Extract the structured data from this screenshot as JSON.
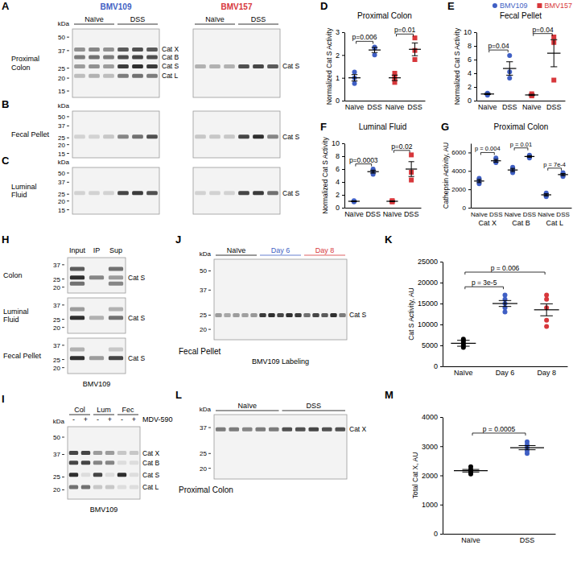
{
  "chart_data": [
    {
      "type": "scatter",
      "panel": "D",
      "title": "Proximal Colon",
      "y_label": "Normalized Cat S Activity",
      "categories": [
        "Naïve",
        "DSS",
        "Naïve",
        "DSS"
      ],
      "ylim": [
        0,
        3
      ],
      "yticks": [
        0,
        1,
        2,
        3
      ],
      "series": [
        {
          "color": "#3f5fc4",
          "marker": "circle",
          "x": [
            0,
            0,
            0,
            1,
            1,
            1
          ],
          "values": [
            1.25,
            0.75,
            1.0,
            2.0,
            2.3,
            2.35
          ],
          "mean_x": [
            0,
            1
          ],
          "mean": [
            1.0,
            2.22
          ],
          "error": [
            0.14,
            0.11
          ]
        },
        {
          "color": "#d7373b",
          "marker": "square",
          "x": [
            2,
            2,
            2,
            3,
            3,
            3
          ],
          "values": [
            0.8,
            1.0,
            1.2,
            1.8,
            2.2,
            2.75
          ],
          "mean_x": [
            2,
            3
          ],
          "mean": [
            1.0,
            2.25
          ],
          "error": [
            0.12,
            0.28
          ]
        }
      ],
      "annotations": [
        {
          "text": "p=0.006",
          "from": 0,
          "to": 1,
          "y": 2.6
        },
        {
          "text": "p=0.01",
          "from": 2,
          "to": 3,
          "y": 2.92
        }
      ]
    },
    {
      "type": "scatter",
      "panel": "E",
      "title": "Fecal Pellet",
      "y_label": "Normalized Cat S Activity",
      "categories": [
        "Naïve",
        "DSS",
        "Naïve",
        "DSS"
      ],
      "ylim": [
        0,
        10
      ],
      "yticks": [
        0,
        2,
        4,
        6,
        8,
        10
      ],
      "legend": "top-right",
      "series": [
        {
          "name": "BMV109",
          "color": "#3f5fc4",
          "marker": "circle",
          "x": [
            0,
            0,
            0,
            1,
            1,
            1
          ],
          "values": [
            0.8,
            1.0,
            1.1,
            3.3,
            4.2,
            6.6
          ],
          "mean_x": [
            0,
            1
          ],
          "mean": [
            0.97,
            4.7
          ],
          "error": [
            0.09,
            0.98
          ]
        },
        {
          "name": "BMV157",
          "color": "#d7373b",
          "marker": "square",
          "x": [
            2,
            2,
            2,
            3,
            3,
            3
          ],
          "values": [
            0.7,
            0.8,
            1.0,
            9.3,
            8.5,
            3.0
          ],
          "mean_x": [
            2,
            3
          ],
          "mean": [
            0.83,
            6.93
          ],
          "error": [
            0.09,
            1.98
          ]
        }
      ],
      "annotations": [
        {
          "text": "p=0.04",
          "from": 0,
          "to": 1,
          "y": 7.4
        },
        {
          "text": "p=0.04",
          "from": 2,
          "to": 3,
          "y": 9.8
        }
      ]
    },
    {
      "type": "scatter",
      "panel": "F",
      "title": "Luminal Fluid",
      "y_label": "Normalized Cat S Activity",
      "categories": [
        "Naïve",
        "DSS",
        "Naïve",
        "DSS"
      ],
      "ylim": [
        0,
        10
      ],
      "yticks": [
        0,
        2,
        4,
        6,
        8,
        10
      ],
      "series": [
        {
          "color": "#3f5fc4",
          "marker": "circle",
          "x": [
            0,
            0,
            0,
            1,
            1,
            1
          ],
          "values": [
            0.9,
            1.0,
            1.1,
            5.2,
            5.6,
            6.0
          ],
          "mean_x": [
            0,
            1
          ],
          "mean": [
            1.0,
            5.6
          ],
          "error": [
            0.06,
            0.23
          ]
        },
        {
          "color": "#d7373b",
          "marker": "square",
          "x": [
            2,
            2,
            2,
            3,
            3,
            3
          ],
          "values": [
            0.9,
            1.0,
            1.1,
            4.3,
            5.5,
            8.2
          ],
          "mean_x": [
            2,
            3
          ],
          "mean": [
            1.0,
            6.0
          ],
          "error": [
            0.06,
            1.15
          ]
        }
      ],
      "annotations": [
        {
          "text": "p=0.0003",
          "from": 0,
          "to": 1,
          "y": 6.8
        },
        {
          "text": "p=0.02",
          "from": 2,
          "to": 3,
          "y": 8.9
        }
      ]
    },
    {
      "type": "scatter",
      "panel": "G",
      "title": "Proximal Colon",
      "y_label": "Cathepsin Activity, AU",
      "categories": [
        "Naïve",
        "DSS",
        "Naïve",
        "DSS",
        "Naïve",
        "DSS"
      ],
      "ylim": [
        0,
        7000
      ],
      "yticks": [
        0,
        2000,
        4000,
        6000
      ],
      "series": [
        {
          "color": "#3f5fc4",
          "marker": "circle",
          "x": [
            0,
            0,
            0,
            1,
            1,
            1,
            2,
            2,
            2,
            3,
            3,
            3,
            4,
            4,
            4,
            5,
            5,
            5
          ],
          "values": [
            2600,
            2900,
            3200,
            4900,
            5000,
            5400,
            3800,
            4100,
            4400,
            5400,
            5600,
            5700,
            1200,
            1400,
            1600,
            3400,
            3600,
            3800
          ],
          "mean_x": [
            0,
            1,
            2,
            3,
            4,
            5
          ],
          "mean": [
            2900,
            5100,
            4100,
            5567,
            1400,
            3600
          ],
          "error": [
            173,
            153,
            173,
            88,
            115,
            115
          ]
        }
      ],
      "annotations": [
        {
          "text": "p = 0.004",
          "from": 0,
          "to": 1,
          "y": 6000
        },
        {
          "text": "p = 0.01",
          "from": 2,
          "to": 3,
          "y": 6500
        },
        {
          "text": "p = 7e-4",
          "from": 4,
          "to": 5,
          "y": 4300
        }
      ],
      "groups": [
        {
          "label": "Cat X",
          "from": 0,
          "to": 1
        },
        {
          "label": "Cat B",
          "from": 2,
          "to": 3
        },
        {
          "label": "Cat L",
          "from": 4,
          "to": 5
        }
      ]
    },
    {
      "type": "scatter",
      "panel": "K",
      "y_label": "Cat S Activity, AU",
      "categories": [
        "Naïve",
        "Day 6",
        "Day 8"
      ],
      "ylim": [
        0,
        25000
      ],
      "yticks": [
        0,
        5000,
        10000,
        15000,
        20000,
        25000
      ],
      "series": [
        {
          "color": "#000000",
          "marker": "circle",
          "x": [
            0,
            0,
            0,
            0,
            0
          ],
          "values": [
            4500,
            5000,
            5500,
            6000,
            6500
          ],
          "mean_x": [
            0
          ],
          "mean": [
            5500
          ],
          "error": [
            707
          ]
        },
        {
          "color": "#3f5fc4",
          "marker": "circle",
          "x": [
            1,
            1,
            1,
            1,
            1
          ],
          "values": [
            13000,
            14000,
            15000,
            16000,
            17000
          ],
          "mean_x": [
            1
          ],
          "mean": [
            15000
          ],
          "error": [
            707
          ]
        },
        {
          "color": "#d7373b",
          "marker": "circle",
          "x": [
            2,
            2,
            2,
            2,
            2
          ],
          "values": [
            9500,
            11000,
            14000,
            16000,
            17000
          ],
          "mean_x": [
            2
          ],
          "mean": [
            13500
          ],
          "error": [
            1432
          ]
        }
      ],
      "annotations": [
        {
          "text": "p = 3e-5",
          "from": 0,
          "to": 1,
          "y": 19000
        },
        {
          "text": "p = 0.006",
          "from": 0,
          "to": 2,
          "y": 22500
        }
      ]
    },
    {
      "type": "scatter",
      "panel": "M",
      "y_label": "Total Cat X, AU",
      "categories": [
        "Naïve",
        "DSS"
      ],
      "ylim": [
        0,
        4000
      ],
      "yticks": [
        0,
        1000,
        2000,
        3000,
        4000
      ],
      "series": [
        {
          "color": "#000000",
          "marker": "circle",
          "x": [
            0,
            0,
            0,
            0,
            0
          ],
          "values": [
            2050,
            2100,
            2150,
            2200,
            2300
          ],
          "mean_x": [
            0
          ],
          "mean": [
            2160
          ],
          "error": [
            44
          ]
        },
        {
          "color": "#3f5fc4",
          "marker": "circle",
          "x": [
            1,
            1,
            1,
            1,
            1
          ],
          "values": [
            2750,
            2850,
            2950,
            3050,
            3150
          ],
          "mean_x": [
            1
          ],
          "mean": [
            2950
          ],
          "error": [
            71
          ]
        }
      ],
      "annotations": [
        {
          "text": "p = 0.0005",
          "from": 0,
          "to": 1,
          "y": 3450
        }
      ]
    }
  ],
  "gels": [
    {
      "panel": "A",
      "row_label": "Proximal Colon",
      "kda_label": "kDa",
      "markers": [
        50,
        37,
        25,
        20,
        15
      ],
      "ylim": [
        60,
        13
      ],
      "blots": [
        {
          "title": "BMV109",
          "title_color": "#3f5fc4",
          "lane_groups": [
            {
              "label": "Naïve",
              "lanes": 3
            },
            {
              "label": "DSS",
              "lanes": 3
            }
          ],
          "bands": [
            {
              "label": "Cat X",
              "kda": 38,
              "intensity": [
                0.45,
                0.5,
                0.45,
                0.7,
                0.75,
                0.7
              ]
            },
            {
              "label": "Cat B",
              "kda": 32,
              "intensity": [
                0.55,
                0.6,
                0.55,
                0.75,
                0.8,
                0.75
              ]
            },
            {
              "label": "Cat S",
              "kda": 26,
              "intensity": [
                0.4,
                0.45,
                0.4,
                0.85,
                0.9,
                0.85
              ]
            },
            {
              "label": "Cat L",
              "kda": 21,
              "intensity": [
                0.25,
                0.3,
                0.25,
                0.55,
                0.6,
                0.55
              ]
            }
          ]
        },
        {
          "title": "BMV157",
          "title_color": "#d7373b",
          "lane_groups": [
            {
              "label": "Naïve",
              "lanes": 3
            },
            {
              "label": "DSS",
              "lanes": 3
            }
          ],
          "bands": [
            {
              "label": "Cat S",
              "kda": 26,
              "intensity": [
                0.3,
                0.3,
                0.3,
                0.75,
                0.8,
                0.7
              ]
            }
          ]
        }
      ]
    },
    {
      "panel": "B",
      "row_label": "Fecal Pellet",
      "kda_label": "kDa",
      "markers": [
        50,
        37,
        25,
        20,
        15
      ],
      "ylim": [
        60,
        13
      ],
      "blots": [
        {
          "lanes": 6,
          "bands": [
            {
              "kda": 26,
              "intensity": [
                0.15,
                0.15,
                0.2,
                0.5,
                0.6,
                0.75
              ]
            }
          ]
        },
        {
          "lanes": 6,
          "bands": [
            {
              "label": "Cat S",
              "kda": 26,
              "intensity": [
                0.2,
                0.2,
                0.2,
                0.8,
                0.9,
                0.5
              ]
            }
          ]
        }
      ]
    },
    {
      "panel": "C",
      "row_label": "Luminal Fluid",
      "kda_label": "kDa",
      "markers": [
        50,
        37,
        25,
        20,
        15
      ],
      "ylim": [
        60,
        13
      ],
      "blots": [
        {
          "lanes": 6,
          "bands": [
            {
              "kda": 26,
              "intensity": [
                0.15,
                0.15,
                0.15,
                0.8,
                0.85,
                0.75
              ]
            }
          ]
        },
        {
          "lanes": 6,
          "bands": [
            {
              "label": "Cat S",
              "kda": 26,
              "intensity": [
                0.15,
                0.15,
                0.15,
                0.8,
                0.85,
                0.6
              ]
            }
          ]
        }
      ]
    },
    {
      "panel": "H",
      "columns": [
        "Input",
        "IP",
        "Sup"
      ],
      "markers": [
        37,
        25,
        20
      ],
      "ylim": [
        45,
        17
      ],
      "rows": [
        {
          "label": "Colon",
          "bands": [
            {
              "kda": 33,
              "intensity": [
                0.7,
                0,
                0.6
              ]
            },
            {
              "label": "Cat S",
              "kda": 26,
              "intensity": [
                0.9,
                0.5,
                0.4
              ]
            },
            {
              "kda": 22,
              "intensity": [
                0.6,
                0,
                0.5
              ]
            }
          ]
        },
        {
          "label": "Luminal Fluid",
          "bands": [
            {
              "kda": 33,
              "intensity": [
                0.4,
                0,
                0.3
              ]
            },
            {
              "label": "Cat S",
              "kda": 26,
              "intensity": [
                0.9,
                0.3,
                0.6
              ]
            }
          ]
        },
        {
          "label": "Fecal Pellet",
          "bands": [
            {
              "kda": 33,
              "intensity": [
                0.3,
                0,
                0.2
              ]
            },
            {
              "label": "Cat S",
              "kda": 26,
              "intensity": [
                0.9,
                0.4,
                0.8
              ]
            }
          ]
        }
      ],
      "footer": "BMV109"
    },
    {
      "panel": "I",
      "lane_groups": [
        {
          "label": "Col",
          "lane_labels": [
            "-",
            "+"
          ]
        },
        {
          "label": "Lum",
          "lane_labels": [
            "-",
            "+"
          ]
        },
        {
          "label": "Fec",
          "lane_labels": [
            "-",
            "+"
          ]
        }
      ],
      "lane_title": "MDV-590",
      "kda_label": "kDa",
      "markers": [
        50,
        37,
        25,
        20
      ],
      "ylim": [
        60,
        17
      ],
      "bands": [
        {
          "label": "Cat X",
          "kda": 38,
          "intensity": [
            0.8,
            0.8,
            0.4,
            0.4,
            0.2,
            0.2
          ]
        },
        {
          "label": "Cat B",
          "kda": 32,
          "intensity": [
            0.8,
            0.8,
            0.5,
            0.5,
            0.1,
            0.1
          ]
        },
        {
          "label": "Cat S",
          "kda": 26,
          "intensity": [
            0.9,
            0.1,
            0.8,
            0.1,
            0.9,
            0.1
          ]
        },
        {
          "label": "Cat L",
          "kda": 21,
          "intensity": [
            0.6,
            0.6,
            0.2,
            0.2,
            0.1,
            0.1
          ]
        }
      ],
      "footer": "BMV109"
    },
    {
      "panel": "J",
      "lane_groups": [
        {
          "label": "Naïve",
          "lanes": 5
        },
        {
          "label": "Day 6",
          "lanes": 5,
          "color": "#3f5fc4"
        },
        {
          "label": "Day 8",
          "lanes": 5,
          "color": "#d7373b"
        }
      ],
      "kda_label": "kDa",
      "markers": [
        50,
        37,
        25,
        20
      ],
      "ylim": [
        60,
        17
      ],
      "bands": [
        {
          "label": "Cat S",
          "kda": 25,
          "intensity": [
            0.4,
            0.35,
            0.4,
            0.38,
            0.42,
            0.85,
            0.9,
            0.8,
            0.9,
            0.85,
            0.6,
            0.8,
            0.7,
            0.9,
            0.55
          ]
        }
      ],
      "row_label": "Fecal Pellet",
      "footer": "BMV109 Labeling"
    },
    {
      "panel": "L",
      "lane_groups": [
        {
          "label": "Naïve",
          "lanes": 5
        },
        {
          "label": "DSS",
          "lanes": 5
        }
      ],
      "kda_label": "kDa",
      "markers": [
        37,
        25,
        20
      ],
      "ylim": [
        45,
        17
      ],
      "bands": [
        {
          "label": "Cat X",
          "kda": 36,
          "intensity": [
            0.55,
            0.55,
            0.5,
            0.55,
            0.55,
            0.75,
            0.75,
            0.8,
            0.75,
            0.75
          ]
        }
      ],
      "row_label": "Proximal Colon"
    }
  ]
}
